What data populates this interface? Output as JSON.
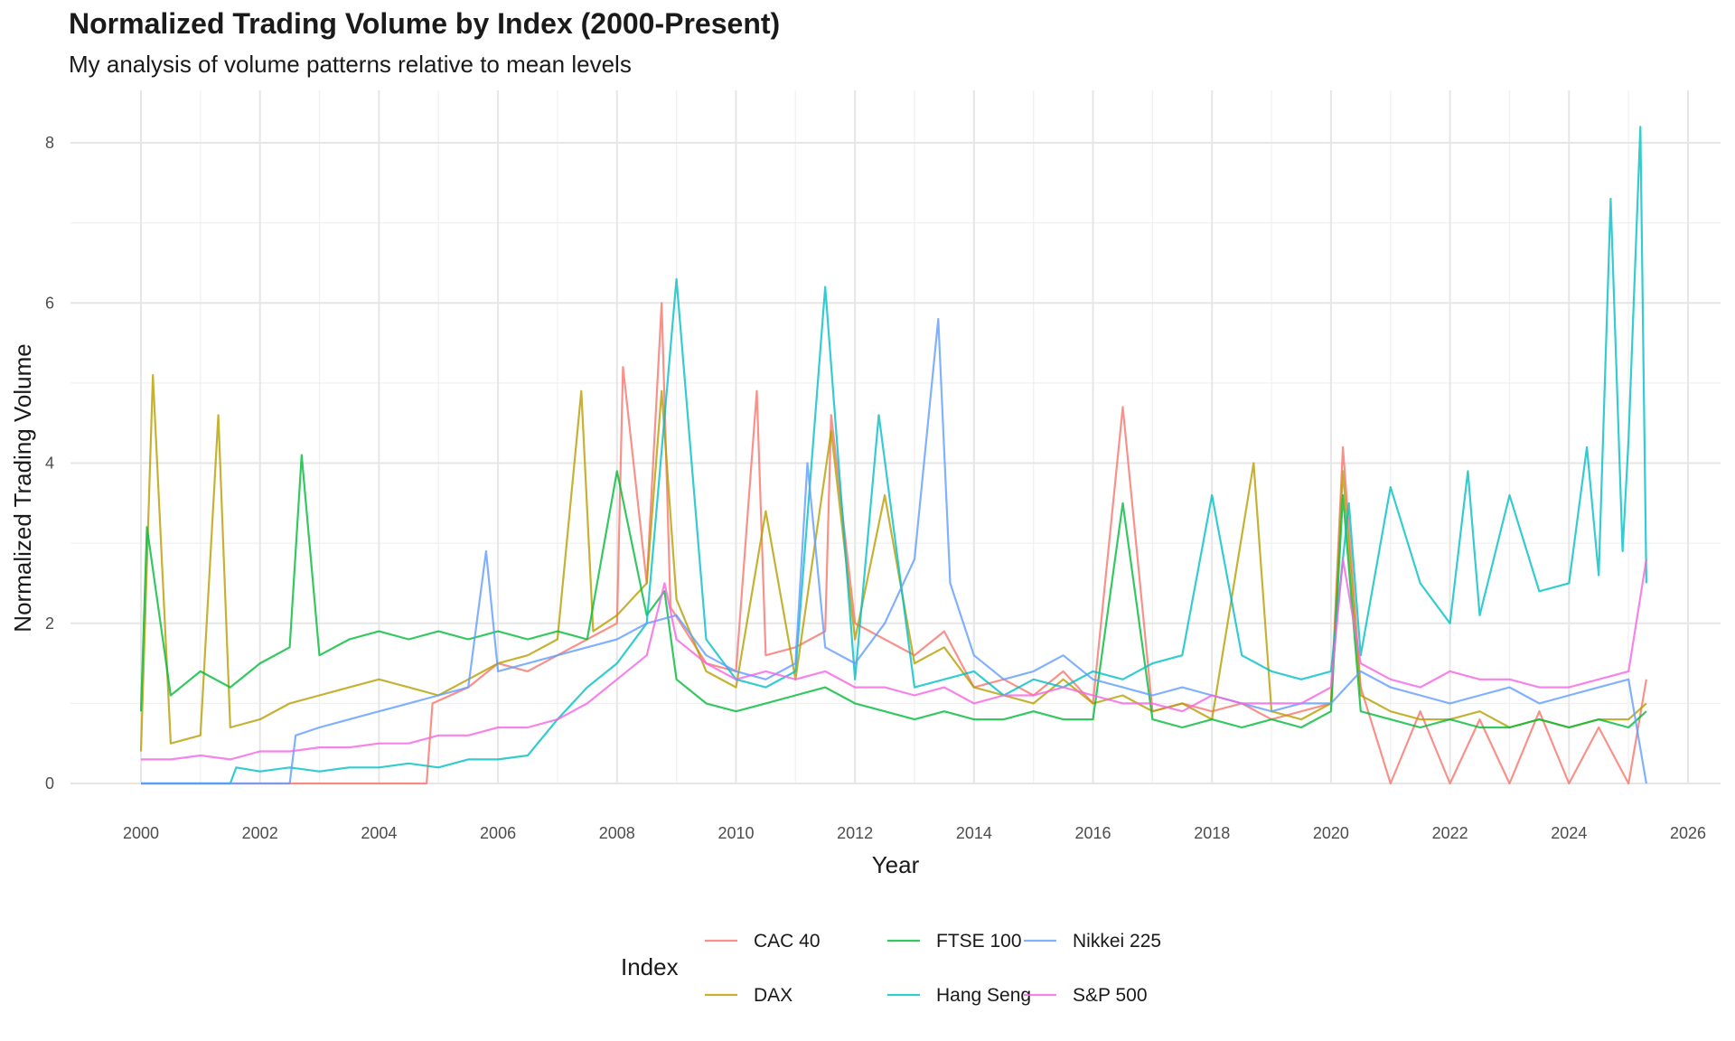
{
  "chart_data": {
    "type": "line",
    "title": "Normalized Trading Volume by Index (2000-Present)",
    "subtitle": "My analysis of volume patterns relative to mean levels",
    "xlabel": "Year",
    "ylabel": "Normalized Trading Volume",
    "xlim": [
      2000,
      2026
    ],
    "ylim": [
      0,
      8.2
    ],
    "x_ticks": [
      "2000",
      "2002",
      "2004",
      "2006",
      "2008",
      "2010",
      "2012",
      "2014",
      "2016",
      "2018",
      "2020",
      "2022",
      "2024",
      "2026"
    ],
    "y_ticks": [
      "0",
      "2",
      "4",
      "6",
      "8"
    ],
    "grid": true,
    "legend": {
      "title": "Index",
      "placement": "bottom"
    },
    "series": [
      {
        "name": "CAC 40",
        "color": "#F8766D",
        "x": [
          2000.0,
          2004.8,
          2004.9,
          2005.5,
          2006.0,
          2006.5,
          2007.0,
          2007.5,
          2008.0,
          2008.1,
          2008.5,
          2008.75,
          2008.9,
          2009.5,
          2010.0,
          2010.35,
          2010.5,
          2011.0,
          2011.5,
          2011.6,
          2012.0,
          2012.5,
          2013.0,
          2013.5,
          2014.0,
          2014.5,
          2015.0,
          2015.5,
          2016.0,
          2016.5,
          2017.0,
          2017.5,
          2018.0,
          2018.5,
          2019.0,
          2019.5,
          2020.0,
          2020.2,
          2020.5,
          2021.0,
          2021.5,
          2022.0,
          2022.5,
          2023.0,
          2023.5,
          2024.0,
          2024.5,
          2025.0,
          2025.3
        ],
        "y": [
          0.0,
          0.0,
          1.0,
          1.2,
          1.5,
          1.4,
          1.6,
          1.8,
          2.0,
          5.2,
          2.5,
          6.0,
          2.2,
          1.5,
          1.4,
          4.9,
          1.6,
          1.7,
          1.9,
          4.6,
          2.0,
          1.8,
          1.6,
          1.9,
          1.2,
          1.3,
          1.1,
          1.4,
          1.0,
          4.7,
          0.9,
          1.0,
          0.9,
          1.0,
          0.8,
          0.9,
          1.0,
          4.2,
          1.2,
          0.0,
          0.9,
          0.0,
          0.8,
          0.0,
          0.9,
          0.0,
          0.7,
          0.0,
          1.3
        ]
      },
      {
        "name": "DAX",
        "color": "#B79F00",
        "x": [
          2000.0,
          2000.2,
          2000.5,
          2001.0,
          2001.3,
          2001.5,
          2002.0,
          2002.5,
          2003.0,
          2003.5,
          2004.0,
          2004.5,
          2005.0,
          2005.5,
          2006.0,
          2006.5,
          2007.0,
          2007.4,
          2007.6,
          2008.0,
          2008.5,
          2008.75,
          2009.0,
          2009.5,
          2010.0,
          2010.5,
          2011.0,
          2011.6,
          2012.0,
          2012.5,
          2013.0,
          2013.5,
          2014.0,
          2014.5,
          2015.0,
          2015.5,
          2016.0,
          2016.5,
          2017.0,
          2017.5,
          2018.0,
          2018.7,
          2019.0,
          2019.5,
          2020.0,
          2020.2,
          2020.5,
          2021.0,
          2021.5,
          2022.0,
          2022.5,
          2023.0,
          2023.5,
          2024.0,
          2024.5,
          2025.0,
          2025.3
        ],
        "y": [
          0.4,
          5.1,
          0.5,
          0.6,
          4.6,
          0.7,
          0.8,
          1.0,
          1.1,
          1.2,
          1.3,
          1.2,
          1.1,
          1.3,
          1.5,
          1.6,
          1.8,
          4.9,
          1.9,
          2.1,
          2.5,
          4.9,
          2.3,
          1.4,
          1.2,
          3.4,
          1.3,
          4.4,
          1.8,
          3.6,
          1.5,
          1.7,
          1.2,
          1.1,
          1.0,
          1.3,
          1.0,
          1.1,
          0.9,
          1.0,
          0.8,
          4.0,
          0.9,
          0.8,
          1.0,
          3.9,
          1.1,
          0.9,
          0.8,
          0.8,
          0.9,
          0.7,
          0.8,
          0.7,
          0.8,
          0.8,
          1.0
        ]
      },
      {
        "name": "FTSE 100",
        "color": "#00BA38",
        "x": [
          2000.0,
          2000.1,
          2000.5,
          2001.0,
          2001.5,
          2002.0,
          2002.5,
          2002.7,
          2003.0,
          2003.5,
          2004.0,
          2004.5,
          2005.0,
          2005.5,
          2006.0,
          2006.5,
          2007.0,
          2007.5,
          2008.0,
          2008.5,
          2008.8,
          2009.0,
          2009.5,
          2010.0,
          2010.5,
          2011.0,
          2011.5,
          2012.0,
          2012.5,
          2013.0,
          2013.5,
          2014.0,
          2014.5,
          2015.0,
          2015.5,
          2016.0,
          2016.5,
          2017.0,
          2017.5,
          2018.0,
          2018.5,
          2019.0,
          2019.5,
          2020.0,
          2020.2,
          2020.5,
          2021.0,
          2021.5,
          2022.0,
          2022.5,
          2023.0,
          2023.5,
          2024.0,
          2024.5,
          2025.0,
          2025.3
        ],
        "y": [
          0.9,
          3.2,
          1.1,
          1.4,
          1.2,
          1.5,
          1.7,
          4.1,
          1.6,
          1.8,
          1.9,
          1.8,
          1.9,
          1.8,
          1.9,
          1.8,
          1.9,
          1.8,
          3.9,
          2.1,
          2.4,
          1.3,
          1.0,
          0.9,
          1.0,
          1.1,
          1.2,
          1.0,
          0.9,
          0.8,
          0.9,
          0.8,
          0.8,
          0.9,
          0.8,
          0.8,
          3.5,
          0.8,
          0.7,
          0.8,
          0.7,
          0.8,
          0.7,
          0.9,
          3.6,
          0.9,
          0.8,
          0.7,
          0.8,
          0.7,
          0.7,
          0.8,
          0.7,
          0.8,
          0.7,
          0.9
        ]
      },
      {
        "name": "Hang Seng",
        "color": "#00BFC4",
        "x": [
          2000.0,
          2001.5,
          2001.6,
          2002.0,
          2002.5,
          2003.0,
          2003.5,
          2004.0,
          2004.5,
          2005.0,
          2005.5,
          2006.0,
          2006.5,
          2007.0,
          2007.5,
          2008.0,
          2008.5,
          2009.0,
          2009.5,
          2010.0,
          2010.5,
          2011.0,
          2011.5,
          2012.0,
          2012.4,
          2013.0,
          2013.5,
          2014.0,
          2014.5,
          2015.0,
          2015.5,
          2016.0,
          2016.5,
          2017.0,
          2017.5,
          2018.0,
          2018.5,
          2019.0,
          2019.5,
          2020.0,
          2020.3,
          2020.5,
          2021.0,
          2021.5,
          2022.0,
          2022.3,
          2022.5,
          2023.0,
          2023.5,
          2024.0,
          2024.3,
          2024.5,
          2024.7,
          2024.9,
          2025.0,
          2025.2,
          2025.3
        ],
        "y": [
          0.0,
          0.0,
          0.2,
          0.15,
          0.2,
          0.15,
          0.2,
          0.2,
          0.25,
          0.2,
          0.3,
          0.3,
          0.35,
          0.8,
          1.2,
          1.5,
          2.0,
          6.3,
          1.8,
          1.3,
          1.2,
          1.4,
          6.2,
          1.3,
          4.6,
          1.2,
          1.3,
          1.4,
          1.1,
          1.3,
          1.2,
          1.4,
          1.3,
          1.5,
          1.6,
          3.6,
          1.6,
          1.4,
          1.3,
          1.4,
          3.5,
          1.6,
          3.7,
          2.5,
          2.0,
          3.9,
          2.1,
          3.6,
          2.4,
          2.5,
          4.2,
          2.6,
          7.3,
          2.9,
          4.3,
          8.2,
          2.5
        ]
      },
      {
        "name": "Nikkei 225",
        "color": "#619CFF",
        "x": [
          2000.0,
          2002.5,
          2002.6,
          2003.0,
          2003.5,
          2004.0,
          2004.5,
          2005.0,
          2005.5,
          2005.8,
          2006.0,
          2006.5,
          2007.0,
          2007.5,
          2008.0,
          2008.5,
          2009.0,
          2009.5,
          2010.0,
          2010.5,
          2011.0,
          2011.2,
          2011.5,
          2012.0,
          2012.5,
          2013.0,
          2013.4,
          2013.6,
          2014.0,
          2014.5,
          2015.0,
          2015.5,
          2016.0,
          2016.5,
          2017.0,
          2017.5,
          2018.0,
          2018.5,
          2019.0,
          2019.5,
          2020.0,
          2020.5,
          2021.0,
          2021.5,
          2022.0,
          2022.5,
          2023.0,
          2023.5,
          2024.0,
          2024.5,
          2025.0,
          2025.3
        ],
        "y": [
          0.0,
          0.0,
          0.6,
          0.7,
          0.8,
          0.9,
          1.0,
          1.1,
          1.2,
          2.9,
          1.4,
          1.5,
          1.6,
          1.7,
          1.8,
          2.0,
          2.1,
          1.6,
          1.4,
          1.3,
          1.5,
          4.0,
          1.7,
          1.5,
          2.0,
          2.8,
          5.8,
          2.5,
          1.6,
          1.3,
          1.4,
          1.6,
          1.3,
          1.2,
          1.1,
          1.2,
          1.1,
          1.0,
          0.9,
          1.0,
          1.0,
          1.4,
          1.2,
          1.1,
          1.0,
          1.1,
          1.2,
          1.0,
          1.1,
          1.2,
          1.3,
          0.0
        ]
      },
      {
        "name": "S&P 500",
        "color": "#F564E3",
        "x": [
          2000.0,
          2000.5,
          2001.0,
          2001.5,
          2002.0,
          2002.5,
          2003.0,
          2003.5,
          2004.0,
          2004.5,
          2005.0,
          2005.5,
          2006.0,
          2006.5,
          2007.0,
          2007.5,
          2008.0,
          2008.5,
          2008.8,
          2009.0,
          2009.5,
          2010.0,
          2010.5,
          2011.0,
          2011.5,
          2012.0,
          2012.5,
          2013.0,
          2013.5,
          2014.0,
          2014.5,
          2015.0,
          2015.5,
          2016.0,
          2016.5,
          2017.0,
          2017.5,
          2018.0,
          2018.5,
          2019.0,
          2019.5,
          2020.0,
          2020.2,
          2020.5,
          2021.0,
          2021.5,
          2022.0,
          2022.5,
          2023.0,
          2023.5,
          2024.0,
          2024.5,
          2025.0,
          2025.3
        ],
        "y": [
          0.3,
          0.3,
          0.35,
          0.3,
          0.4,
          0.4,
          0.45,
          0.45,
          0.5,
          0.5,
          0.6,
          0.6,
          0.7,
          0.7,
          0.8,
          1.0,
          1.3,
          1.6,
          2.5,
          1.8,
          1.5,
          1.3,
          1.4,
          1.3,
          1.4,
          1.2,
          1.2,
          1.1,
          1.2,
          1.0,
          1.1,
          1.1,
          1.2,
          1.1,
          1.0,
          1.0,
          0.9,
          1.1,
          1.0,
          1.0,
          1.0,
          1.2,
          2.8,
          1.5,
          1.3,
          1.2,
          1.4,
          1.3,
          1.3,
          1.2,
          1.2,
          1.3,
          1.4,
          2.8
        ]
      }
    ]
  }
}
